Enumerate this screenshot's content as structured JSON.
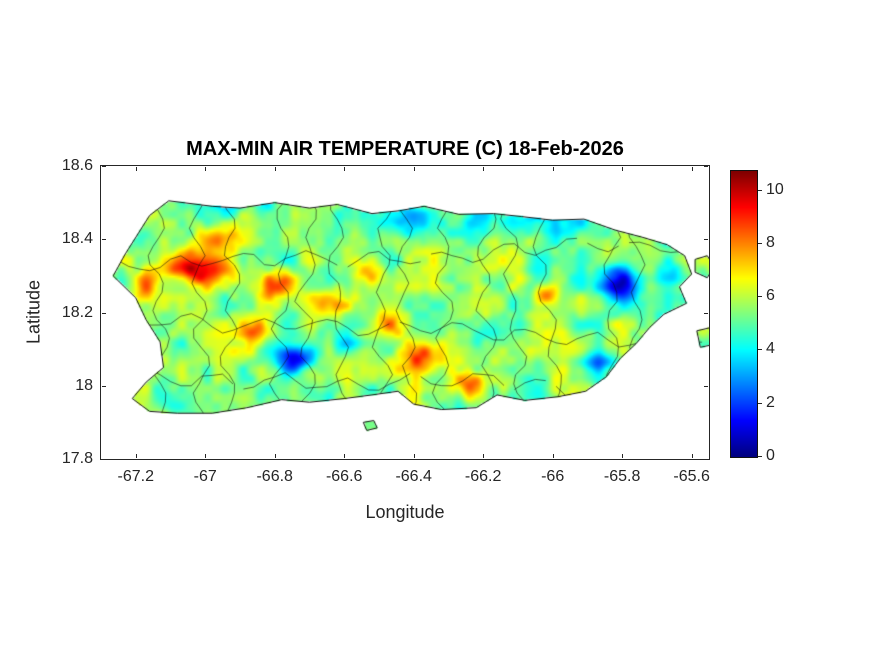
{
  "chart_data": {
    "type": "heatmap",
    "title": "MAX-MIN AIR TEMPERATURE (C) 18-Feb-2026",
    "xlabel": "Longitude",
    "ylabel": "Latitude",
    "region": "Puerto Rico with municipality boundaries",
    "xlim": [
      -67.3,
      -65.55
    ],
    "ylim": [
      17.8,
      18.6
    ],
    "grid": false,
    "xticks": [
      {
        "label": "-67.2",
        "value": -67.2
      },
      {
        "label": "-67",
        "value": -67.0
      },
      {
        "label": "-66.8",
        "value": -66.8
      },
      {
        "label": "-66.6",
        "value": -66.6
      },
      {
        "label": "-66.4",
        "value": -66.4
      },
      {
        "label": "-66.2",
        "value": -66.2
      },
      {
        "label": "-66",
        "value": -66.0
      },
      {
        "label": "-65.8",
        "value": -65.8
      },
      {
        "label": "-65.6",
        "value": -65.6
      }
    ],
    "yticks": [
      {
        "label": "17.8",
        "value": 17.8
      },
      {
        "label": "18",
        "value": 18.0
      },
      {
        "label": "18.2",
        "value": 18.2
      },
      {
        "label": "18.4",
        "value": 18.4
      },
      {
        "label": "18.6",
        "value": 18.6
      }
    ],
    "colorbar": {
      "colormap": "jet",
      "vmin": 0,
      "vmax": 10.7,
      "position": "right",
      "ticks": [
        {
          "label": "0",
          "value": 0
        },
        {
          "label": "2",
          "value": 2
        },
        {
          "label": "4",
          "value": 4
        },
        {
          "label": "6",
          "value": 6
        },
        {
          "label": "8",
          "value": 8
        },
        {
          "label": "10",
          "value": 10
        }
      ]
    },
    "field": {
      "units": "deg C",
      "base": 5.5,
      "noise": [
        {
          "scale": 0.06,
          "amp": 1.1
        },
        {
          "scale": 0.025,
          "amp": 0.55
        }
      ],
      "blobs_lon_lat_sigx_sigy_amp": [
        [
          -67.02,
          18.32,
          0.1,
          0.045,
          4.2
        ],
        [
          -66.95,
          18.4,
          0.05,
          0.035,
          2.2
        ],
        [
          -67.17,
          18.27,
          0.03,
          0.04,
          2.2
        ],
        [
          -66.79,
          18.27,
          0.055,
          0.04,
          3.0
        ],
        [
          -66.65,
          18.23,
          0.07,
          0.045,
          2.0
        ],
        [
          -66.54,
          18.31,
          0.045,
          0.03,
          1.8
        ],
        [
          -66.47,
          18.17,
          0.05,
          0.04,
          2.0
        ],
        [
          -66.38,
          18.07,
          0.065,
          0.045,
          3.0
        ],
        [
          -66.24,
          18.01,
          0.055,
          0.035,
          2.4
        ],
        [
          -66.86,
          18.15,
          0.04,
          0.03,
          1.8
        ],
        [
          -66.02,
          18.25,
          0.032,
          0.028,
          2.6
        ],
        [
          -66.13,
          18.0,
          0.04,
          0.03,
          1.2
        ],
        [
          -66.74,
          18.07,
          0.055,
          0.035,
          -4.2
        ],
        [
          -66.59,
          18.11,
          0.04,
          0.03,
          -2.2
        ],
        [
          -65.8,
          18.28,
          0.065,
          0.05,
          -4.0
        ],
        [
          -65.87,
          18.06,
          0.05,
          0.035,
          -3.2
        ],
        [
          -66.35,
          18.46,
          0.28,
          0.05,
          -1.6
        ],
        [
          -65.95,
          18.43,
          0.15,
          0.05,
          -1.3
        ],
        [
          -65.66,
          18.31,
          0.04,
          0.05,
          -2.2
        ],
        [
          -67.1,
          17.94,
          0.06,
          0.035,
          -1.2
        ],
        [
          -66.2,
          18.12,
          0.04,
          0.03,
          -0.8
        ],
        [
          -66.9,
          18.49,
          0.1,
          0.03,
          -1.0
        ]
      ]
    },
    "outline": {
      "main": [
        [
          -67.16,
          18.465
        ],
        [
          -67.105,
          18.505
        ],
        [
          -66.98,
          18.49
        ],
        [
          -66.9,
          18.485
        ],
        [
          -66.8,
          18.5
        ],
        [
          -66.7,
          18.485
        ],
        [
          -66.62,
          18.495
        ],
        [
          -66.52,
          18.47
        ],
        [
          -66.44,
          18.478
        ],
        [
          -66.37,
          18.49
        ],
        [
          -66.27,
          18.468
        ],
        [
          -66.17,
          18.47
        ],
        [
          -66.09,
          18.462
        ],
        [
          -66.0,
          18.452
        ],
        [
          -65.91,
          18.455
        ],
        [
          -65.82,
          18.425
        ],
        [
          -65.74,
          18.405
        ],
        [
          -65.67,
          18.385
        ],
        [
          -65.62,
          18.355
        ],
        [
          -65.6,
          18.305
        ],
        [
          -65.635,
          18.27
        ],
        [
          -65.615,
          18.225
        ],
        [
          -65.68,
          18.195
        ],
        [
          -65.72,
          18.16
        ],
        [
          -65.76,
          18.115
        ],
        [
          -65.805,
          18.075
        ],
        [
          -65.845,
          18.025
        ],
        [
          -65.905,
          17.985
        ],
        [
          -65.985,
          17.97
        ],
        [
          -66.08,
          17.96
        ],
        [
          -66.16,
          17.975
        ],
        [
          -66.22,
          17.94
        ],
        [
          -66.32,
          17.935
        ],
        [
          -66.4,
          17.95
        ],
        [
          -66.445,
          17.985
        ],
        [
          -66.52,
          17.975
        ],
        [
          -66.6,
          17.965
        ],
        [
          -66.7,
          17.955
        ],
        [
          -66.78,
          17.962
        ],
        [
          -66.88,
          17.94
        ],
        [
          -66.98,
          17.925
        ],
        [
          -67.08,
          17.925
        ],
        [
          -67.16,
          17.93
        ],
        [
          -67.21,
          17.965
        ],
        [
          -67.17,
          18.01
        ],
        [
          -67.12,
          18.05
        ],
        [
          -67.13,
          18.12
        ],
        [
          -67.17,
          18.18
        ],
        [
          -67.2,
          18.24
        ],
        [
          -67.265,
          18.3
        ],
        [
          -67.23,
          18.36
        ],
        [
          -67.19,
          18.42
        ]
      ],
      "islets": [
        [
          [
            -65.59,
            18.345
          ],
          [
            -65.555,
            18.355
          ],
          [
            -65.535,
            18.325
          ],
          [
            -65.555,
            18.295
          ],
          [
            -65.59,
            18.31
          ]
        ],
        [
          [
            -65.585,
            18.15
          ],
          [
            -65.54,
            18.16
          ],
          [
            -65.525,
            18.115
          ],
          [
            -65.575,
            18.105
          ]
        ],
        [
          [
            -66.545,
            17.9
          ],
          [
            -66.515,
            17.905
          ],
          [
            -66.505,
            17.885
          ],
          [
            -66.535,
            17.878
          ]
        ]
      ]
    },
    "boundaries": {
      "vertical_lines": 14,
      "horizontal_lines": 3,
      "seed": 11
    }
  },
  "colors": {
    "background": "#ffffff",
    "axis_text": "#262626",
    "title_text": "#000000",
    "coastline": "#111111",
    "municipality_line": "#1a1a1a"
  }
}
